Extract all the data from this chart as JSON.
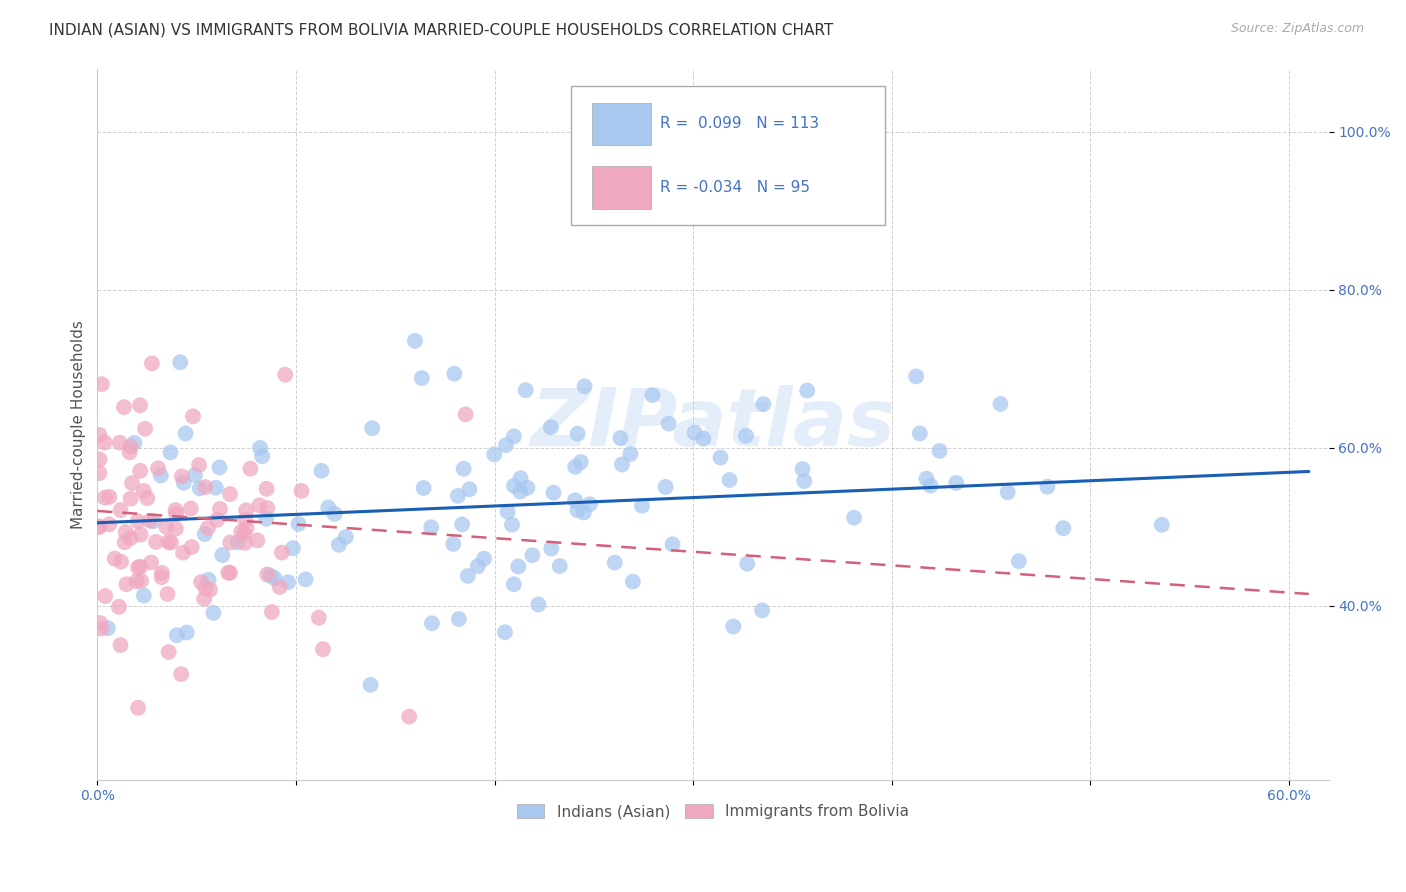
{
  "title": "INDIAN (ASIAN) VS IMMIGRANTS FROM BOLIVIA MARRIED-COUPLE HOUSEHOLDS CORRELATION CHART",
  "source": "Source: ZipAtlas.com",
  "ylabel": "Married-couple Households",
  "xlim": [
    0.0,
    0.62
  ],
  "ylim": [
    0.18,
    1.08
  ],
  "xtick_positions": [
    0.0,
    0.1,
    0.2,
    0.3,
    0.4,
    0.5,
    0.6
  ],
  "xticklabels": [
    "0.0%",
    "",
    "",
    "",
    "",
    "",
    "60.0%"
  ],
  "ytick_positions": [
    0.4,
    0.6,
    0.8,
    1.0
  ],
  "yticklabels": [
    "40.0%",
    "60.0%",
    "80.0%",
    "100.0%"
  ],
  "color_blue": "#a8c8f0",
  "color_pink": "#f0a8c0",
  "line_color_blue": "#1a5fb4",
  "line_color_pink": "#d4607a",
  "watermark": "ZIPatlas",
  "legend_label_blue": "Indians (Asian)",
  "legend_label_pink": "Immigrants from Bolivia",
  "background_color": "#ffffff",
  "grid_color": "#cccccc",
  "title_fontsize": 11,
  "axis_label_fontsize": 11,
  "tick_label_color": "#4472c4",
  "tick_label_fontsize": 10,
  "blue_line_y_start": 0.505,
  "blue_line_y_end": 0.57,
  "pink_line_y_start": 0.52,
  "pink_line_y_end": 0.415
}
